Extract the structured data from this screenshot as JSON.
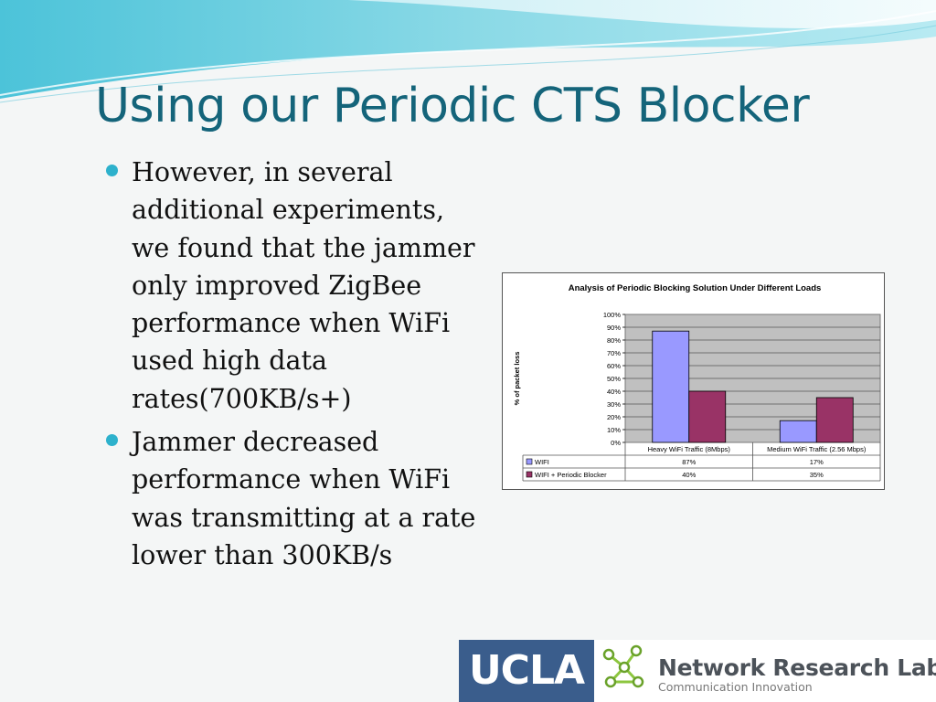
{
  "slide": {
    "title": "Using our Periodic CTS Blocker",
    "bullets": [
      "However, in several additional experiments, we found that the jammer only improved ZigBee performance when WiFi used high data rates(700KB/s+)",
      "Jammer decreased performance when WiFi was transmitting at a rate lower than 300KB/s"
    ]
  },
  "chart_data": {
    "type": "bar",
    "title": "Analysis of Periodic Blocking Solution Under Different Loads",
    "xlabel": "",
    "ylabel": "% of packet loss",
    "ylim": [
      0,
      100
    ],
    "yticks": [
      "0%",
      "10%",
      "20%",
      "30%",
      "40%",
      "50%",
      "60%",
      "70%",
      "80%",
      "90%",
      "100%"
    ],
    "categories": [
      "Heavy WiFi Traffic (8Mbps)",
      "Medium WiFi Traffic (2.56 Mbps)"
    ],
    "series": [
      {
        "name": "WIFI",
        "values": [
          87,
          17
        ],
        "labels": [
          "87%",
          "17%"
        ],
        "color": "#9999ff"
      },
      {
        "name": "WIFI + Periodic Blocker",
        "values": [
          40,
          35
        ],
        "labels": [
          "40%",
          "35%"
        ],
        "color": "#993366"
      }
    ],
    "grid": true,
    "plot_background": "#c0c0c0",
    "legend": "data-table"
  },
  "footer": {
    "ucla_logo_text": "UCLA",
    "lab_name": "Network Research Lab",
    "lab_tagline": "Communication Innovation",
    "ucla_color": "#3a5d8c",
    "lab_logo_icon": "network-nodes-icon"
  },
  "theme": {
    "title_color": "#14647a",
    "bullet_color": "#2db1cc"
  }
}
